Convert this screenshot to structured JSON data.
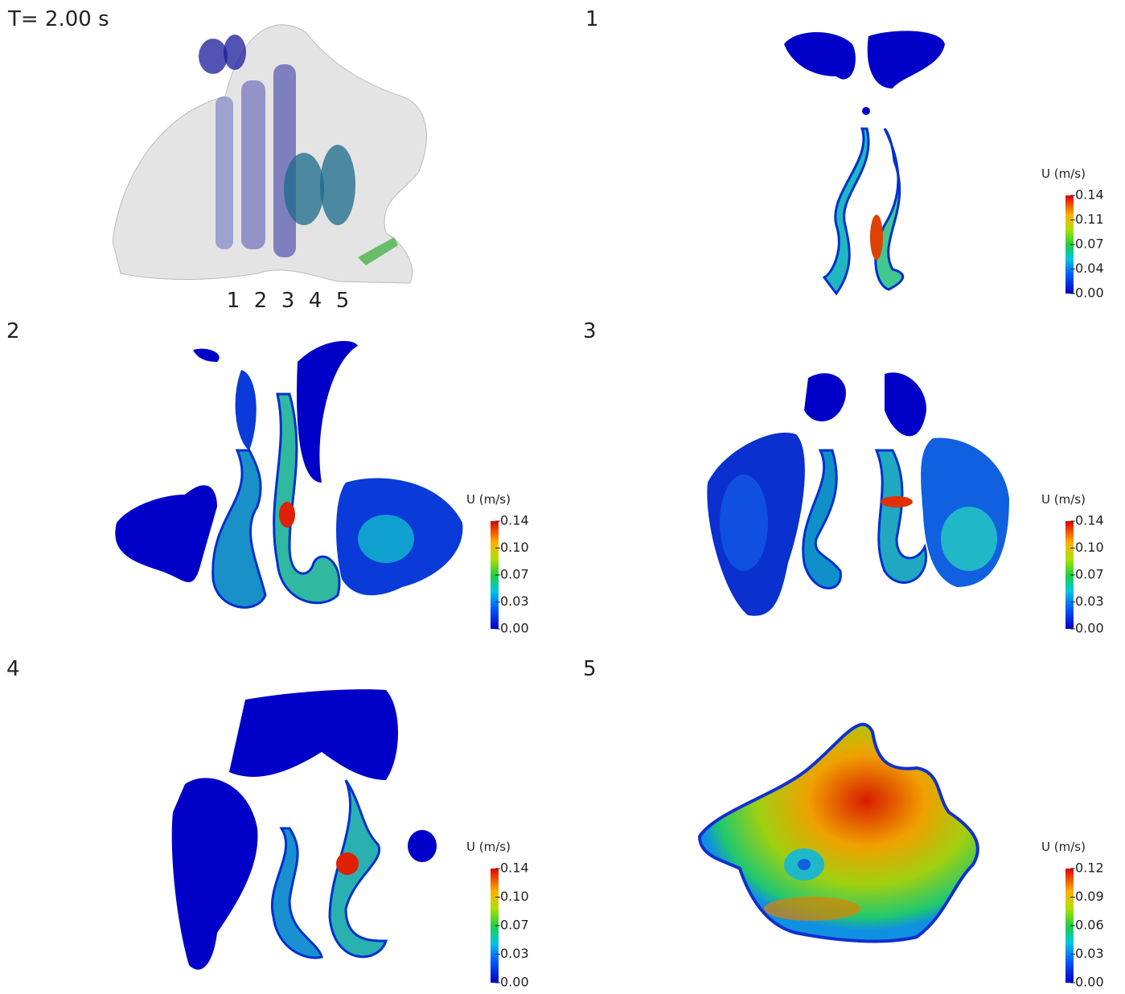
{
  "time_label": "T= 2.00 s",
  "overview": {
    "section_labels": [
      "1",
      "2",
      "3",
      "4",
      "5"
    ]
  },
  "panels": [
    {
      "label": "1",
      "colorbar": {
        "title": "U (m/s)",
        "ticks": [
          "0.14",
          "0.11",
          "0.07",
          "0.04",
          "0.00"
        ]
      }
    },
    {
      "label": "2",
      "colorbar": {
        "title": "U (m/s)",
        "ticks": [
          "0.14",
          "0.10",
          "0.07",
          "0.03",
          "0.00"
        ]
      }
    },
    {
      "label": "3",
      "colorbar": {
        "title": "U (m/s)",
        "ticks": [
          "0.14",
          "0.10",
          "0.07",
          "0.03",
          "0.00"
        ]
      }
    },
    {
      "label": "4",
      "colorbar": {
        "title": "U (m/s)",
        "ticks": [
          "0.14",
          "0.10",
          "0.07",
          "0.03",
          "0.00"
        ]
      }
    },
    {
      "label": "5",
      "colorbar": {
        "title": "U (m/s)",
        "ticks": [
          "0.12",
          "0.09",
          "0.06",
          "0.03",
          "0.00"
        ]
      }
    }
  ]
}
